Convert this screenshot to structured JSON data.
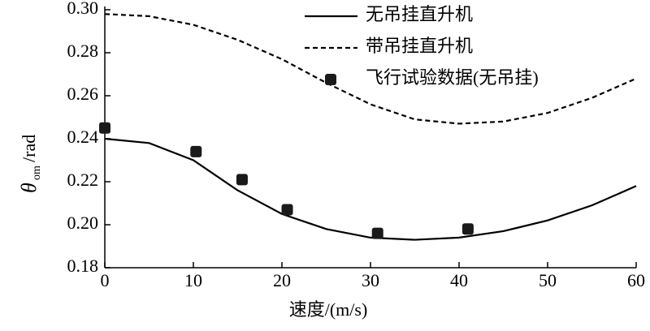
{
  "chart_data": {
    "type": "line",
    "xlabel": "速度/(m/s)",
    "ylabel_symbol": "θ",
    "ylabel_subscript": "om",
    "ylabel_unit": "/rad",
    "xlim": [
      0,
      60
    ],
    "xticks": [
      0,
      10,
      20,
      30,
      40,
      50,
      60
    ],
    "ylim": [
      0.18,
      0.3
    ],
    "yticks": [
      0.18,
      {
        "value": 0.2,
        "label": "0.20"
      },
      0.22,
      0.24,
      0.26,
      0.28,
      {
        "value": 0.3,
        "label": "0.30"
      }
    ],
    "legend": "upper right",
    "series": [
      {
        "name": "无吊挂直升机",
        "color": "#000000",
        "style": "solid",
        "marker": "none",
        "x": [
          0,
          5,
          10,
          15,
          20,
          25,
          30,
          35,
          40,
          45,
          50,
          55,
          60
        ],
        "values": [
          0.24,
          0.238,
          0.23,
          0.216,
          0.205,
          0.198,
          0.194,
          0.193,
          0.194,
          0.197,
          0.202,
          0.209,
          0.218
        ]
      },
      {
        "name": "带吊挂直升机",
        "color": "#000000",
        "style": "dashed",
        "marker": "none",
        "x": [
          0,
          5,
          10,
          15,
          20,
          25,
          30,
          35,
          40,
          45,
          50,
          55,
          60
        ],
        "values": [
          0.298,
          0.297,
          0.293,
          0.286,
          0.277,
          0.266,
          0.256,
          0.249,
          0.247,
          0.248,
          0.252,
          0.259,
          0.268
        ]
      },
      {
        "name": "飞行试验数据(无吊挂)",
        "color": "#1a1a1a",
        "style": "none",
        "marker": "square",
        "x": [
          0,
          10.3,
          15.5,
          20.6,
          30.8,
          41
        ],
        "values": [
          0.245,
          0.234,
          0.221,
          0.207,
          0.196,
          0.198
        ]
      }
    ]
  }
}
